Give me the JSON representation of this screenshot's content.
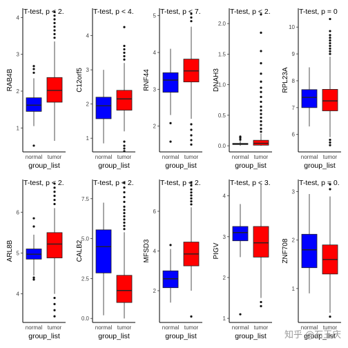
{
  "chart_data": [
    {
      "type": "box",
      "title": "T-test, p < 2.",
      "ylabel": "RAB4B",
      "xlabel": "group_list",
      "categories": [
        "normal",
        "tumor"
      ],
      "colors": [
        "#0000ff",
        "#ff0000"
      ],
      "ylim": [
        0.35,
        4.25
      ],
      "yticks": [
        1,
        2,
        3,
        4
      ],
      "boxes": [
        {
          "group": "normal",
          "min": 1.05,
          "q1": 1.45,
          "median": 1.62,
          "q3": 1.82,
          "max": 2.35,
          "outliers": [
            0.52,
            2.5,
            2.6,
            2.68
          ]
        },
        {
          "group": "tumor",
          "min": 0.65,
          "q1": 1.7,
          "median": 2.02,
          "q3": 2.37,
          "max": 3.35,
          "outliers": [
            3.45,
            3.55,
            3.65,
            3.75,
            3.85,
            3.95,
            4.05,
            4.15
          ]
        }
      ]
    },
    {
      "type": "box",
      "title": "T-test, p < 4.",
      "ylabel": "C12orf5",
      "xlabel": "group_list",
      "categories": [
        "normal",
        "tumor"
      ],
      "colors": [
        "#0000ff",
        "#ff0000"
      ],
      "ylim": [
        0.6,
        4.8
      ],
      "yticks": [
        1,
        2,
        3,
        4
      ],
      "boxes": [
        {
          "group": "normal",
          "min": 0.85,
          "q1": 1.57,
          "median": 1.95,
          "q3": 2.2,
          "max": 3.0,
          "outliers": []
        },
        {
          "group": "tumor",
          "min": 1.2,
          "q1": 1.82,
          "median": 2.15,
          "q3": 2.4,
          "max": 3.2,
          "outliers": [
            0.62,
            0.7,
            0.78,
            0.9,
            3.3,
            3.4,
            3.5,
            3.6,
            3.7,
            4.25
          ]
        }
      ]
    },
    {
      "type": "box",
      "title": "T-test, p < 7.",
      "ylabel": "RNF44",
      "xlabel": "group_list",
      "categories": [
        "normal",
        "tumor"
      ],
      "colors": [
        "#0000ff",
        "#ff0000"
      ],
      "ylim": [
        1.3,
        5.2
      ],
      "yticks": [
        2,
        3,
        4,
        5
      ],
      "boxes": [
        {
          "group": "normal",
          "min": 2.3,
          "q1": 2.92,
          "median": 3.25,
          "q3": 3.45,
          "max": 4.1,
          "outliers": [
            1.58,
            2.08
          ]
        },
        {
          "group": "tumor",
          "min": 2.2,
          "q1": 3.2,
          "median": 3.5,
          "q3": 3.82,
          "max": 4.7,
          "outliers": [
            1.5,
            1.62,
            1.75,
            1.9,
            2.05,
            4.85,
            4.95,
            5.05
          ]
        }
      ]
    },
    {
      "type": "box",
      "title": "T-test, p < 2.",
      "ylabel": "DNAH3",
      "xlabel": "group_list",
      "categories": [
        "normal",
        "tumor"
      ],
      "colors": [
        "#0000ff",
        "#ff0000"
      ],
      "ylim": [
        -0.1,
        2.25
      ],
      "yticks": [
        0.0,
        0.5,
        1.0,
        1.5,
        2.0
      ],
      "ytick_labels": [
        "0.0",
        "0.5",
        "1.0",
        "1.5",
        "2.0"
      ],
      "boxes": [
        {
          "group": "normal",
          "min": 0.0,
          "q1": 0.02,
          "median": 0.03,
          "q3": 0.04,
          "max": 0.08,
          "outliers": [
            0.1,
            0.13,
            0.15
          ]
        },
        {
          "group": "tumor",
          "min": 0.0,
          "q1": 0.01,
          "median": 0.04,
          "q3": 0.09,
          "max": 0.2,
          "outliers": [
            0.23,
            0.28,
            0.34,
            0.4,
            0.46,
            0.52,
            0.58,
            0.64,
            0.72,
            0.8,
            0.88,
            0.95,
            1.05,
            1.18,
            1.35,
            1.55,
            1.85,
            2.15
          ]
        }
      ]
    },
    {
      "type": "box",
      "title": "T-test, p = 0",
      "ylabel": "RPL23A",
      "xlabel": "group_list",
      "categories": [
        "normal",
        "tumor"
      ],
      "colors": [
        "#0000ff",
        "#ff0000"
      ],
      "ylim": [
        5.35,
        10.7
      ],
      "yticks": [
        6,
        7,
        8,
        9,
        10
      ],
      "boxes": [
        {
          "group": "normal",
          "min": 6.3,
          "q1": 7.0,
          "median": 7.38,
          "q3": 7.67,
          "max": 8.5,
          "outliers": []
        },
        {
          "group": "tumor",
          "min": 5.9,
          "q1": 6.88,
          "median": 7.25,
          "q3": 7.68,
          "max": 8.9,
          "outliers": [
            5.6,
            5.7,
            5.8,
            9.0,
            9.1,
            9.2,
            9.3,
            9.4,
            9.5,
            9.6,
            9.7,
            9.85,
            10.3
          ]
        }
      ]
    },
    {
      "type": "box",
      "title": "T-test, p < 2.",
      "ylabel": "ARL8B",
      "xlabel": "group_list",
      "categories": [
        "normal",
        "tumor"
      ],
      "colors": [
        "#0000ff",
        "#ff0000"
      ],
      "ylim": [
        3.3,
        6.8
      ],
      "yticks": [
        4,
        5,
        6
      ],
      "boxes": [
        {
          "group": "normal",
          "min": 4.45,
          "q1": 4.85,
          "median": 4.97,
          "q3": 5.1,
          "max": 5.45,
          "outliers": [
            4.35,
            4.4,
            5.65,
            5.85
          ]
        },
        {
          "group": "tumor",
          "min": 4.0,
          "q1": 4.88,
          "median": 5.22,
          "q3": 5.5,
          "max": 6.1,
          "outliers": [
            3.45,
            3.6,
            3.75,
            3.9,
            6.2,
            6.3,
            6.4,
            6.5,
            6.6,
            6.7
          ]
        }
      ]
    },
    {
      "type": "box",
      "title": "T-test, p < 2.",
      "ylabel": "CALB2",
      "xlabel": "group_list",
      "categories": [
        "normal",
        "tumor"
      ],
      "colors": [
        "#0000ff",
        "#ff0000"
      ],
      "ylim": [
        -0.25,
        8.7
      ],
      "yticks": [
        0.0,
        2.5,
        5.0,
        7.5
      ],
      "ytick_labels": [
        "0.0",
        "2.5",
        "5.0",
        "7.5"
      ],
      "boxes": [
        {
          "group": "normal",
          "min": 0.2,
          "q1": 2.85,
          "median": 4.5,
          "q3": 5.55,
          "max": 7.25,
          "outliers": []
        },
        {
          "group": "tumor",
          "min": 0.0,
          "q1": 1.0,
          "median": 1.75,
          "q3": 2.7,
          "max": 5.4,
          "outliers": [
            5.6,
            5.8,
            6.0,
            6.2,
            6.4,
            6.6,
            6.8,
            7.0,
            7.3,
            7.6,
            7.9,
            8.2,
            8.5
          ]
        }
      ]
    },
    {
      "type": "box",
      "title": "T-test, p < 2.",
      "ylabel": "MFSD3",
      "xlabel": "group_list",
      "categories": [
        "normal",
        "tumor"
      ],
      "colors": [
        "#0000ff",
        "#ff0000"
      ],
      "ylim": [
        0.4,
        7.6
      ],
      "yticks": [
        2,
        4,
        6
      ],
      "boxes": [
        {
          "group": "normal",
          "min": 1.4,
          "q1": 2.15,
          "median": 2.6,
          "q3": 3.0,
          "max": 4.1,
          "outliers": [
            4.3
          ]
        },
        {
          "group": "tumor",
          "min": 2.0,
          "q1": 3.25,
          "median": 3.85,
          "q3": 4.45,
          "max": 6.2,
          "outliers": [
            0.7,
            6.35,
            6.5,
            6.65,
            6.8,
            6.95,
            7.1,
            7.3,
            7.45
          ]
        }
      ]
    },
    {
      "type": "box",
      "title": "T-test, p < 3.",
      "ylabel": "PIGV",
      "xlabel": "group_list",
      "categories": [
        "normal",
        "tumor"
      ],
      "colors": [
        "#0000ff",
        "#ff0000"
      ],
      "ylim": [
        0.9,
        4.4
      ],
      "yticks": [
        1,
        2,
        3,
        4
      ],
      "boxes": [
        {
          "group": "normal",
          "min": 2.5,
          "q1": 2.9,
          "median": 3.1,
          "q3": 3.25,
          "max": 3.8,
          "outliers": [
            1.1
          ]
        },
        {
          "group": "tumor",
          "min": 1.5,
          "q1": 2.5,
          "median": 2.85,
          "q3": 3.25,
          "max": 4.3,
          "outliers": [
            1.3,
            1.4
          ]
        }
      ]
    },
    {
      "type": "box",
      "title": "T-test, p = 0.",
      "ylabel": "ZNF708",
      "xlabel": "group_list",
      "categories": [
        "normal",
        "tumor"
      ],
      "colors": [
        "#0000ff",
        "#ff0000"
      ],
      "ylim": [
        0.3,
        3.25
      ],
      "yticks": [
        1,
        2,
        3
      ],
      "boxes": [
        {
          "group": "normal",
          "min": 0.9,
          "q1": 1.43,
          "median": 1.8,
          "q3": 2.12,
          "max": 2.95,
          "outliers": []
        },
        {
          "group": "tumor",
          "min": 0.5,
          "q1": 1.3,
          "median": 1.6,
          "q3": 1.9,
          "max": 2.9,
          "outliers": [
            0.42,
            3.05,
            3.15
          ]
        }
      ]
    }
  ],
  "watermark": "知乎 @石玉庆"
}
